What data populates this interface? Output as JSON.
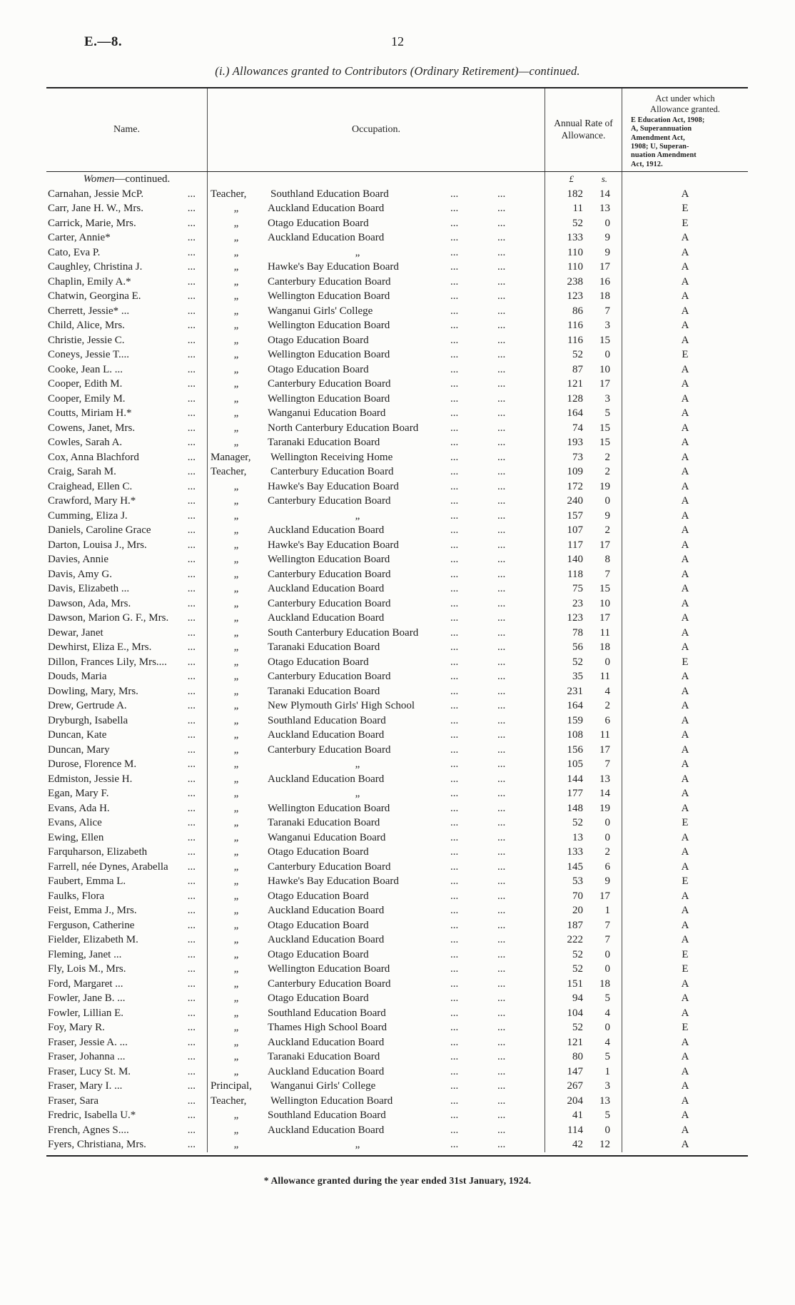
{
  "page": {
    "doc_ref": "E.—8.",
    "page_number": "12",
    "title": "(i.) Allowances granted to Contributors (Ordinary Retirement)—continued.",
    "footnote": "* Allowance granted during the year ended 31st January, 1924."
  },
  "table": {
    "headers": {
      "name": "Name.",
      "occupation": "Occupation.",
      "annual_rate": "Annual Rate of\nAllowance.",
      "act_title": "Act under which\nAllowance granted.",
      "act_key": "E Education Act, 1908;\nA, Superannuation\nAmendment Act,\n1908; U, Superan-\nnuation Amendment\nAct, 1912."
    },
    "currency": {
      "pounds": "£",
      "shillings": "s."
    },
    "section": {
      "italic": "Women",
      "rest": "—continued."
    },
    "leader": "...",
    "rows": [
      {
        "n": "Carnahan, Jessie McP.",
        "r": "Teacher,",
        "b": "Southland Education Board",
        "p": "182",
        "s": "14",
        "a": "A"
      },
      {
        "n": "Carr, Jane H. W., Mrs.",
        "r": "„",
        "b": "Auckland Education Board",
        "p": "11",
        "s": "13",
        "a": "E"
      },
      {
        "n": "Carrick, Marie, Mrs.",
        "r": "„",
        "b": "Otago Education Board",
        "p": "52",
        "s": "0",
        "a": "E"
      },
      {
        "n": "Carter, Annie*",
        "r": "„",
        "b": "Auckland Education Board",
        "p": "133",
        "s": "9",
        "a": "A"
      },
      {
        "n": "Cato, Eva P.",
        "r": "„",
        "b": "„",
        "p": "110",
        "s": "9",
        "a": "A"
      },
      {
        "n": "Caughley, Christina J.",
        "r": "„",
        "b": "Hawke's Bay Education Board",
        "p": "110",
        "s": "17",
        "a": "A"
      },
      {
        "n": "Chaplin, Emily A.*",
        "r": "„",
        "b": "Canterbury Education Board",
        "p": "238",
        "s": "16",
        "a": "A"
      },
      {
        "n": "Chatwin, Georgina E.",
        "r": "„",
        "b": "Wellington Education Board",
        "p": "123",
        "s": "18",
        "a": "A"
      },
      {
        "n": "Cherrett, Jessie* ...",
        "r": "„",
        "b": "Wanganui Girls' College",
        "p": "86",
        "s": "7",
        "a": "A"
      },
      {
        "n": "Child, Alice, Mrs.",
        "r": "„",
        "b": "Wellington Education Board",
        "p": "116",
        "s": "3",
        "a": "A"
      },
      {
        "n": "Christie, Jessie C.",
        "r": "„",
        "b": "Otago Education Board",
        "p": "116",
        "s": "15",
        "a": "A"
      },
      {
        "n": "Coneys, Jessie T....",
        "r": "„",
        "b": "Wellington Education Board",
        "p": "52",
        "s": "0",
        "a": "E"
      },
      {
        "n": "Cooke, Jean L. ...",
        "r": "„",
        "b": "Otago Education Board",
        "p": "87",
        "s": "10",
        "a": "A"
      },
      {
        "n": "Cooper, Edith M.",
        "r": "„",
        "b": "Canterbury Education Board",
        "p": "121",
        "s": "17",
        "a": "A"
      },
      {
        "n": "Cooper, Emily M.",
        "r": "„",
        "b": "Wellington Education Board",
        "p": "128",
        "s": "3",
        "a": "A"
      },
      {
        "n": "Coutts, Miriam H.*",
        "r": "„",
        "b": "Wanganui Education Board",
        "p": "164",
        "s": "5",
        "a": "A"
      },
      {
        "n": "Cowens, Janet, Mrs.",
        "r": "„",
        "b": "North Canterbury Education Board",
        "p": "74",
        "s": "15",
        "a": "A"
      },
      {
        "n": "Cowles, Sarah A.",
        "r": "„",
        "b": "Taranaki Education Board",
        "p": "193",
        "s": "15",
        "a": "A"
      },
      {
        "n": "Cox, Anna Blachford",
        "r": "Manager,",
        "b": "Wellington Receiving Home",
        "p": "73",
        "s": "2",
        "a": "A"
      },
      {
        "n": "Craig, Sarah M.",
        "r": "Teacher,",
        "b": "Canterbury Education Board",
        "p": "109",
        "s": "2",
        "a": "A"
      },
      {
        "n": "Craighead, Ellen C.",
        "r": "„",
        "b": "Hawke's Bay Education Board",
        "p": "172",
        "s": "19",
        "a": "A"
      },
      {
        "n": "Crawford, Mary H.*",
        "r": "„",
        "b": "Canterbury Education Board",
        "p": "240",
        "s": "0",
        "a": "A"
      },
      {
        "n": "Cumming, Eliza J.",
        "r": "„",
        "b": "„",
        "p": "157",
        "s": "9",
        "a": "A"
      },
      {
        "n": "Daniels, Caroline Grace",
        "r": "„",
        "b": "Auckland Education Board",
        "p": "107",
        "s": "2",
        "a": "A"
      },
      {
        "n": "Darton, Louisa J., Mrs.",
        "r": "„",
        "b": "Hawke's Bay Education Board",
        "p": "117",
        "s": "17",
        "a": "A"
      },
      {
        "n": "Davies, Annie",
        "r": "„",
        "b": "Wellington Education Board",
        "p": "140",
        "s": "8",
        "a": "A"
      },
      {
        "n": "Davis, Amy G.",
        "r": "„",
        "b": "Canterbury Education Board",
        "p": "118",
        "s": "7",
        "a": "A"
      },
      {
        "n": "Davis, Elizabeth ...",
        "r": "„",
        "b": "Auckland Education Board",
        "p": "75",
        "s": "15",
        "a": "A"
      },
      {
        "n": "Dawson, Ada, Mrs.",
        "r": "„",
        "b": "Canterbury Education Board",
        "p": "23",
        "s": "10",
        "a": "A"
      },
      {
        "n": "Dawson, Marion G. F., Mrs.",
        "r": "„",
        "b": "Auckland Education Board",
        "p": "123",
        "s": "17",
        "a": "A"
      },
      {
        "n": "Dewar, Janet",
        "r": "„",
        "b": "South Canterbury Education Board",
        "p": "78",
        "s": "11",
        "a": "A"
      },
      {
        "n": "Dewhirst, Eliza E., Mrs.",
        "r": "„",
        "b": "Taranaki Education Board",
        "p": "56",
        "s": "18",
        "a": "A"
      },
      {
        "n": "Dillon, Frances Lily, Mrs....",
        "r": "„",
        "b": "Otago Education Board",
        "p": "52",
        "s": "0",
        "a": "E"
      },
      {
        "n": "Douds, Maria",
        "r": "„",
        "b": "Canterbury Education Board",
        "p": "35",
        "s": "11",
        "a": "A"
      },
      {
        "n": "Dowling, Mary, Mrs.",
        "r": "„",
        "b": "Taranaki Education Board",
        "p": "231",
        "s": "4",
        "a": "A"
      },
      {
        "n": "Drew, Gertrude A.",
        "r": "„",
        "b": "New Plymouth Girls' High School",
        "p": "164",
        "s": "2",
        "a": "A"
      },
      {
        "n": "Dryburgh, Isabella",
        "r": "„",
        "b": "Southland Education Board",
        "p": "159",
        "s": "6",
        "a": "A"
      },
      {
        "n": "Duncan, Kate",
        "r": "„",
        "b": "Auckland Education Board",
        "p": "108",
        "s": "11",
        "a": "A"
      },
      {
        "n": "Duncan, Mary",
        "r": "„",
        "b": "Canterbury Education Board",
        "p": "156",
        "s": "17",
        "a": "A"
      },
      {
        "n": "Durose, Florence M.",
        "r": "„",
        "b": "„",
        "p": "105",
        "s": "7",
        "a": "A"
      },
      {
        "n": "Edmiston, Jessie H.",
        "r": "„",
        "b": "Auckland Education Board",
        "p": "144",
        "s": "13",
        "a": "A"
      },
      {
        "n": "Egan, Mary F.",
        "r": "„",
        "b": "„",
        "p": "177",
        "s": "14",
        "a": "A"
      },
      {
        "n": "Evans, Ada H.",
        "r": "„",
        "b": "Wellington Education Board",
        "p": "148",
        "s": "19",
        "a": "A"
      },
      {
        "n": "Evans, Alice",
        "r": "„",
        "b": "Taranaki Education Board",
        "p": "52",
        "s": "0",
        "a": "E"
      },
      {
        "n": "Ewing, Ellen",
        "r": "„",
        "b": "Wanganui Education Board",
        "p": "13",
        "s": "0",
        "a": "A"
      },
      {
        "n": "Farquharson, Elizabeth",
        "r": "„",
        "b": "Otago Education Board",
        "p": "133",
        "s": "2",
        "a": "A"
      },
      {
        "n": "Farrell, née Dynes, Arabella",
        "r": "„",
        "b": "Canterbury Education Board",
        "p": "145",
        "s": "6",
        "a": "A"
      },
      {
        "n": "Faubert, Emma L.",
        "r": "„",
        "b": "Hawke's Bay Education Board",
        "p": "53",
        "s": "9",
        "a": "E"
      },
      {
        "n": "Faulks, Flora",
        "r": "„",
        "b": "Otago Education Board",
        "p": "70",
        "s": "17",
        "a": "A"
      },
      {
        "n": "Feist, Emma J., Mrs.",
        "r": "„",
        "b": "Auckland Education Board",
        "p": "20",
        "s": "1",
        "a": "A"
      },
      {
        "n": "Ferguson, Catherine",
        "r": "„",
        "b": "Otago Education Board",
        "p": "187",
        "s": "7",
        "a": "A"
      },
      {
        "n": "Fielder, Elizabeth M.",
        "r": "„",
        "b": "Auckland Education Board",
        "p": "222",
        "s": "7",
        "a": "A"
      },
      {
        "n": "Fleming, Janet ...",
        "r": "„",
        "b": "Otago Education Board",
        "p": "52",
        "s": "0",
        "a": "E"
      },
      {
        "n": "Fly, Lois M., Mrs.",
        "r": "„",
        "b": "Wellington Education Board",
        "p": "52",
        "s": "0",
        "a": "E"
      },
      {
        "n": "Ford, Margaret ...",
        "r": "„",
        "b": "Canterbury Education Board",
        "p": "151",
        "s": "18",
        "a": "A"
      },
      {
        "n": "Fowler, Jane B. ...",
        "r": "„",
        "b": "Otago Education Board",
        "p": "94",
        "s": "5",
        "a": "A"
      },
      {
        "n": "Fowler, Lillian E.",
        "r": "„",
        "b": "Southland Education Board",
        "p": "104",
        "s": "4",
        "a": "A"
      },
      {
        "n": "Foy, Mary R.",
        "r": "„",
        "b": "Thames High School Board",
        "p": "52",
        "s": "0",
        "a": "E"
      },
      {
        "n": "Fraser, Jessie A. ...",
        "r": "„",
        "b": "Auckland Education Board",
        "p": "121",
        "s": "4",
        "a": "A"
      },
      {
        "n": "Fraser, Johanna ...",
        "r": "„",
        "b": "Taranaki Education Board",
        "p": "80",
        "s": "5",
        "a": "A"
      },
      {
        "n": "Fraser, Lucy St. M.",
        "r": "„",
        "b": "Auckland Education Board",
        "p": "147",
        "s": "1",
        "a": "A"
      },
      {
        "n": "Fraser, Mary I. ...",
        "r": "Principal,",
        "b": "Wanganui Girls' College",
        "p": "267",
        "s": "3",
        "a": "A"
      },
      {
        "n": "Fraser, Sara",
        "r": "Teacher,",
        "b": "Wellington Education Board",
        "p": "204",
        "s": "13",
        "a": "A"
      },
      {
        "n": "Fredric, Isabella U.*",
        "r": "„",
        "b": "Southland Education Board",
        "p": "41",
        "s": "5",
        "a": "A"
      },
      {
        "n": "French, Agnes S....",
        "r": "„",
        "b": "Auckland Education Board",
        "p": "114",
        "s": "0",
        "a": "A"
      },
      {
        "n": "Fyers, Christiana, Mrs.",
        "r": "„",
        "b": "„",
        "p": "42",
        "s": "12",
        "a": "A"
      }
    ]
  }
}
